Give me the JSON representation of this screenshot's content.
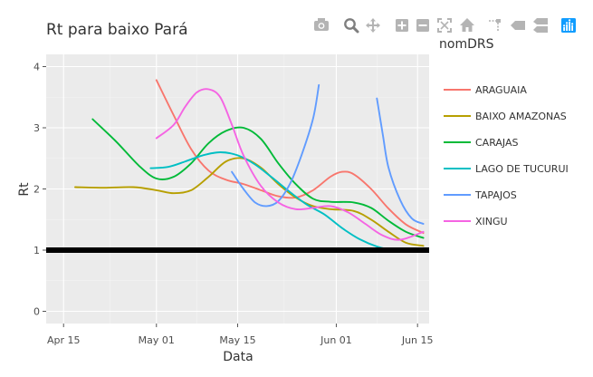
{
  "chart_data": {
    "type": "line",
    "title": "Rt para baixo Pará",
    "xlabel": "Data",
    "ylabel": "Rt",
    "xlim": [
      "2020-04-12",
      "2020-06-17"
    ],
    "ylim": [
      -0.2,
      4.2
    ],
    "x_ticks": [
      {
        "date": "2020-04-15",
        "label": "Apr 15"
      },
      {
        "date": "2020-05-01",
        "label": "May 01"
      },
      {
        "date": "2020-05-15",
        "label": "May 15"
      },
      {
        "date": "2020-06-01",
        "label": "Jun 01"
      },
      {
        "date": "2020-06-15",
        "label": "Jun 15"
      }
    ],
    "y_ticks": [
      0,
      1,
      2,
      3,
      4
    ],
    "grid": true,
    "background": "#ebebeb",
    "legend": {
      "title": "nomDRS",
      "placement": "right"
    },
    "hline": {
      "y": 1,
      "color": "#000000"
    },
    "series": [
      {
        "name": "ARAGUAIA",
        "color": "#F8766D",
        "points": [
          [
            "2020-05-01",
            3.78
          ],
          [
            "2020-05-04",
            3.2
          ],
          [
            "2020-05-07",
            2.65
          ],
          [
            "2020-05-10",
            2.3
          ],
          [
            "2020-05-13",
            2.15
          ],
          [
            "2020-05-16",
            2.08
          ],
          [
            "2020-05-19",
            1.98
          ],
          [
            "2020-05-22",
            1.88
          ],
          [
            "2020-05-25",
            1.86
          ],
          [
            "2020-05-28",
            1.98
          ],
          [
            "2020-05-31",
            2.2
          ],
          [
            "2020-06-02",
            2.28
          ],
          [
            "2020-06-04",
            2.24
          ],
          [
            "2020-06-07",
            2.0
          ],
          [
            "2020-06-10",
            1.68
          ],
          [
            "2020-06-13",
            1.42
          ],
          [
            "2020-06-16",
            1.28
          ]
        ]
      },
      {
        "name": "BAIXO AMAZONAS",
        "color": "#B79F00",
        "points": [
          [
            "2020-04-17",
            2.03
          ],
          [
            "2020-04-22",
            2.02
          ],
          [
            "2020-04-27",
            2.03
          ],
          [
            "2020-05-01",
            1.98
          ],
          [
            "2020-05-04",
            1.93
          ],
          [
            "2020-05-07",
            1.98
          ],
          [
            "2020-05-10",
            2.2
          ],
          [
            "2020-05-13",
            2.45
          ],
          [
            "2020-05-16",
            2.5
          ],
          [
            "2020-05-19",
            2.35
          ],
          [
            "2020-05-22",
            2.08
          ],
          [
            "2020-05-25",
            1.86
          ],
          [
            "2020-05-28",
            1.72
          ],
          [
            "2020-05-31",
            1.67
          ],
          [
            "2020-06-04",
            1.64
          ],
          [
            "2020-06-07",
            1.5
          ],
          [
            "2020-06-10",
            1.3
          ],
          [
            "2020-06-13",
            1.12
          ],
          [
            "2020-06-16",
            1.07
          ]
        ]
      },
      {
        "name": "CARAJAS",
        "color": "#00BA38",
        "points": [
          [
            "2020-04-20",
            3.14
          ],
          [
            "2020-04-24",
            2.78
          ],
          [
            "2020-04-28",
            2.38
          ],
          [
            "2020-05-01",
            2.17
          ],
          [
            "2020-05-04",
            2.2
          ],
          [
            "2020-05-07",
            2.42
          ],
          [
            "2020-05-10",
            2.75
          ],
          [
            "2020-05-13",
            2.95
          ],
          [
            "2020-05-16",
            3.0
          ],
          [
            "2020-05-19",
            2.82
          ],
          [
            "2020-05-22",
            2.42
          ],
          [
            "2020-05-25",
            2.08
          ],
          [
            "2020-05-28",
            1.84
          ],
          [
            "2020-05-31",
            1.79
          ],
          [
            "2020-06-04",
            1.78
          ],
          [
            "2020-06-07",
            1.69
          ],
          [
            "2020-06-10",
            1.48
          ],
          [
            "2020-06-13",
            1.3
          ],
          [
            "2020-06-16",
            1.2
          ]
        ]
      },
      {
        "name": "LAGO DE TUCURUI",
        "color": "#00BFC4",
        "points": [
          [
            "2020-04-30",
            2.34
          ],
          [
            "2020-05-03",
            2.36
          ],
          [
            "2020-05-06",
            2.45
          ],
          [
            "2020-05-09",
            2.55
          ],
          [
            "2020-05-12",
            2.6
          ],
          [
            "2020-05-15",
            2.55
          ],
          [
            "2020-05-18",
            2.4
          ],
          [
            "2020-05-21",
            2.18
          ],
          [
            "2020-05-24",
            1.95
          ],
          [
            "2020-05-27",
            1.74
          ],
          [
            "2020-05-30",
            1.58
          ],
          [
            "2020-06-02",
            1.36
          ],
          [
            "2020-06-05",
            1.18
          ],
          [
            "2020-06-08",
            1.06
          ],
          [
            "2020-06-11",
            1.0
          ],
          [
            "2020-06-14",
            1.0
          ],
          [
            "2020-06-16",
            1.02
          ]
        ]
      },
      {
        "name": "TAPAJOS",
        "color": "#619CFF",
        "segments": [
          [
            [
              "2020-05-14",
              2.28
            ],
            [
              "2020-05-16",
              2.0
            ],
            [
              "2020-05-18",
              1.78
            ],
            [
              "2020-05-20",
              1.72
            ],
            [
              "2020-05-22",
              1.8
            ],
            [
              "2020-05-24",
              2.08
            ],
            [
              "2020-05-26",
              2.55
            ],
            [
              "2020-05-28",
              3.15
            ],
            [
              "2020-05-29",
              3.7
            ]
          ],
          [
            [
              "2020-06-08",
              3.48
            ],
            [
              "2020-06-09",
              2.9
            ],
            [
              "2020-06-10",
              2.35
            ],
            [
              "2020-06-12",
              1.82
            ],
            [
              "2020-06-14",
              1.52
            ],
            [
              "2020-06-16",
              1.43
            ]
          ]
        ]
      },
      {
        "name": "XINGU",
        "color": "#F564E3",
        "points": [
          [
            "2020-05-01",
            2.83
          ],
          [
            "2020-05-04",
            3.05
          ],
          [
            "2020-05-06",
            3.35
          ],
          [
            "2020-05-08",
            3.58
          ],
          [
            "2020-05-10",
            3.63
          ],
          [
            "2020-05-12",
            3.5
          ],
          [
            "2020-05-14",
            3.05
          ],
          [
            "2020-05-16",
            2.55
          ],
          [
            "2020-05-19",
            2.05
          ],
          [
            "2020-05-22",
            1.78
          ],
          [
            "2020-05-25",
            1.67
          ],
          [
            "2020-05-28",
            1.69
          ],
          [
            "2020-05-31",
            1.72
          ],
          [
            "2020-06-03",
            1.62
          ],
          [
            "2020-06-06",
            1.43
          ],
          [
            "2020-06-09",
            1.24
          ],
          [
            "2020-06-12",
            1.17
          ],
          [
            "2020-06-16",
            1.3
          ]
        ]
      }
    ]
  },
  "toolbar": [
    {
      "name": "camera-icon",
      "active": false
    },
    {
      "name": "zoom-icon",
      "active": true
    },
    {
      "name": "pan-icon",
      "active": false
    },
    {
      "name": "zoom-in-icon",
      "active": false
    },
    {
      "name": "zoom-out-icon",
      "active": false
    },
    {
      "name": "autoscale-icon",
      "active": false
    },
    {
      "name": "home-icon",
      "active": false
    },
    {
      "name": "spike-lines-icon",
      "active": false
    },
    {
      "name": "hover-closest-icon",
      "active": false
    },
    {
      "name": "hover-compare-icon",
      "active": false
    },
    {
      "name": "plotly-logo-icon",
      "active": false
    }
  ]
}
